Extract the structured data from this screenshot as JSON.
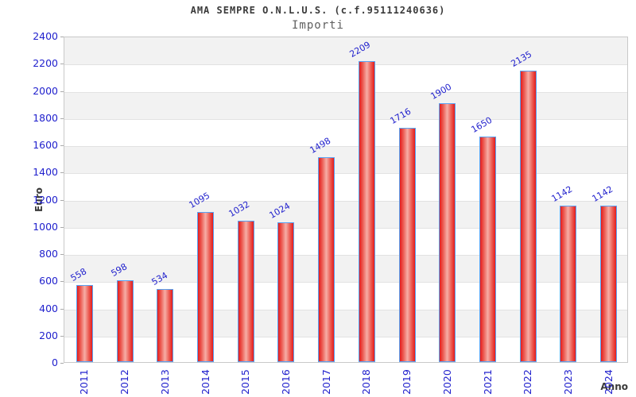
{
  "header": {
    "title": "AMA SEMPRE O.N.L.U.S. (c.f.95111240636)",
    "subtitle": "Importi"
  },
  "chart_data": {
    "type": "bar",
    "title": "AMA SEMPRE O.N.L.U.S. (c.f.95111240636)",
    "subtitle": "Importi",
    "xlabel": "Anno",
    "ylabel": "Euro",
    "categories": [
      "2011",
      "2012",
      "2013",
      "2014",
      "2015",
      "2016",
      "2017",
      "2018",
      "2019",
      "2020",
      "2021",
      "2022",
      "2023",
      "2024"
    ],
    "values": [
      558,
      598,
      534,
      1095,
      1032,
      1024,
      1498,
      2209,
      1716,
      1900,
      1650,
      2135,
      1142,
      1142
    ],
    "ylim": [
      0,
      2400
    ],
    "ytick_step": 200,
    "yticks": [
      0,
      200,
      400,
      600,
      800,
      1000,
      1200,
      1400,
      1600,
      1800,
      2000,
      2200,
      2400
    ],
    "legend": "none",
    "grid": "horizontal-bands-alternating",
    "colors": {
      "tick_label_blue": "#2121cd",
      "bar_red_edge": "#e41c1c",
      "bar_red_mid": "#f6aea6",
      "bar_border_blue": "#58a2f3",
      "band_gray": "#f2f2f2",
      "plot_border": "#c9c9c9",
      "title_text": "#3a3a3a",
      "subtitle_text": "#5f5f5f"
    }
  }
}
